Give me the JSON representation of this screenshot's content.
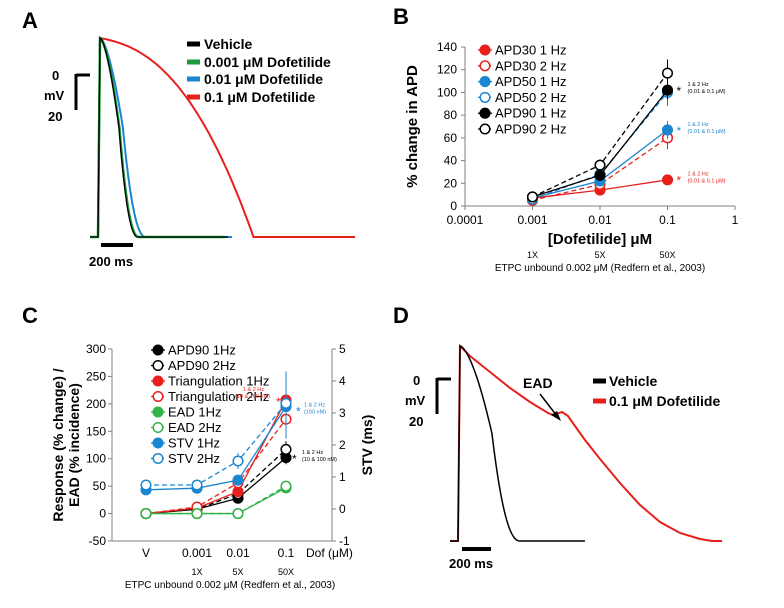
{
  "panels": {
    "A": {
      "letter": "A",
      "scale_zero": "0",
      "scale_unit": "mV",
      "scale_bottom": "20",
      "time_scale": "200 ms",
      "legend": [
        "Vehicle",
        "0.001 μM Dofetilide",
        "0.01 μM Dofetilide",
        "0.1 μM Dofetilide"
      ]
    },
    "B": {
      "letter": "B"
    },
    "C": {
      "letter": "C"
    },
    "D": {
      "letter": "D",
      "scale_zero": "0",
      "scale_unit": "mV",
      "scale_bottom": "20",
      "time_scale": "200 ms",
      "ead_label": "EAD",
      "legend": [
        "Vehicle",
        "0.1 μM Dofetilide"
      ]
    }
  },
  "colors": {
    "black": "#000000",
    "green": "#1f9a3a",
    "green_light": "#34b24a",
    "blue": "#1b86d0",
    "red": "#e8201c",
    "gray": "#808080"
  },
  "chart_data": [
    {
      "panel": "A",
      "type": "line",
      "title": "",
      "xlabel": "",
      "ylabel": "",
      "series": [
        {
          "name": "Vehicle",
          "color": "#000000",
          "apd_ms": 215
        },
        {
          "name": "0.001 μM Dofetilide",
          "color": "#1f9a3a",
          "apd_ms": 220
        },
        {
          "name": "0.01 μM Dofetilide",
          "color": "#1b86d0",
          "apd_ms": 260
        },
        {
          "name": "0.1 μM Dofetilide",
          "color": "#e8201c",
          "apd_ms": 720
        }
      ]
    },
    {
      "panel": "B",
      "type": "scatter",
      "title": "",
      "xlabel": "[Dofetilide] μM",
      "ylabel": "% change in APD",
      "xscale": "log",
      "xlim": [
        0.0001,
        1
      ],
      "ylim": [
        0,
        140
      ],
      "x_ticks": [
        "0.0001",
        "0.001",
        "0.01",
        "0.1",
        "1"
      ],
      "y_ticks": [
        "0",
        "20",
        "40",
        "60",
        "80",
        "100",
        "120",
        "140"
      ],
      "multiples": [
        "1X",
        "5X",
        "50X"
      ],
      "footnote": "ETPC unbound 0.002 μM (Redfern et al., 2003)",
      "x": [
        0.001,
        0.01,
        0.1
      ],
      "series": [
        {
          "name": "APD30 1 Hz",
          "color": "#e8201c",
          "filled": true,
          "dashed": false,
          "values": [
            7,
            14,
            23
          ],
          "err": [
            1,
            4,
            4
          ]
        },
        {
          "name": "APD30 2 Hz",
          "color": "#e8201c",
          "filled": false,
          "dashed": true,
          "values": [
            5,
            19,
            60
          ],
          "err": [
            1,
            4,
            10
          ]
        },
        {
          "name": "APD50 1 Hz",
          "color": "#1b86d0",
          "filled": true,
          "dashed": false,
          "values": [
            7,
            22,
            67
          ],
          "err": [
            1,
            4,
            8
          ]
        },
        {
          "name": "APD50 2 Hz",
          "color": "#1b86d0",
          "filled": false,
          "dashed": true,
          "values": [
            6,
            28,
            100
          ],
          "err": [
            1,
            5,
            12
          ]
        },
        {
          "name": "APD90 1 Hz",
          "color": "#000000",
          "filled": true,
          "dashed": false,
          "values": [
            8,
            27,
            102
          ],
          "err": [
            1,
            4,
            8
          ]
        },
        {
          "name": "APD90 2 Hz",
          "color": "#000000",
          "filled": false,
          "dashed": true,
          "values": [
            8,
            36,
            117
          ],
          "err": [
            2,
            5,
            12
          ]
        }
      ],
      "annotations": [
        {
          "text_top": "1 & 2 Hz",
          "text_bottom": "(0.01 & 0.1 μM)",
          "color": "#000000",
          "at_value": 103
        },
        {
          "text_top": "1 & 2 Hz",
          "text_bottom": "(0.01 & 0.1 μM)",
          "color": "#1b86d0",
          "at_value": 68
        },
        {
          "text_top": "1 & 2 Hz",
          "text_bottom": "(0.01 & 0.1 μM)",
          "color": "#e8201c",
          "at_value": 24
        }
      ]
    },
    {
      "panel": "C",
      "type": "scatter",
      "title": "",
      "xlabel": "Dof (μM)",
      "ylabel": "Response (% change) / EAD (% incidence)",
      "ylabel_lines": [
        "Response (% change) /",
        "EAD (% incidence)"
      ],
      "y2label": "STV (ms)",
      "categories": [
        "V",
        "0.001",
        "0.01",
        "0.1"
      ],
      "ylim": [
        -50,
        300
      ],
      "y2lim": [
        -1,
        5
      ],
      "y_ticks": [
        "-50",
        "0",
        "50",
        "100",
        "150",
        "200",
        "250",
        "300"
      ],
      "y2_ticks": [
        "-1",
        "0",
        "1",
        "2",
        "3",
        "4",
        "5"
      ],
      "multiples": [
        "1X",
        "5X",
        "50X"
      ],
      "footnote": "ETPC unbound 0.002 μM (Redfern et al., 2003)",
      "series": [
        {
          "name": "APD90 1Hz",
          "color": "#000000",
          "filled": true,
          "dashed": false,
          "axis": "left",
          "values": [
            0,
            8,
            28,
            102
          ],
          "err": [
            2,
            3,
            5,
            12
          ]
        },
        {
          "name": "APD90 2Hz",
          "color": "#000000",
          "filled": false,
          "dashed": true,
          "axis": "left",
          "values": [
            0,
            8,
            36,
            117
          ],
          "err": [
            2,
            3,
            6,
            15
          ]
        },
        {
          "name": "Triangulation 1Hz",
          "color": "#e8201c",
          "filled": true,
          "dashed": false,
          "axis": "left",
          "values": [
            0,
            10,
            40,
            207
          ],
          "err": [
            2,
            3,
            6,
            25
          ]
        },
        {
          "name": "Triangulation 2Hz",
          "color": "#e8201c",
          "filled": false,
          "dashed": true,
          "axis": "left",
          "values": [
            0,
            12,
            56,
            172
          ],
          "err": [
            2,
            3,
            8,
            25
          ]
        },
        {
          "name": "EAD 1Hz",
          "color": "#34b24a",
          "filled": true,
          "dashed": false,
          "axis": "left",
          "values": [
            0,
            0,
            0,
            47
          ],
          "err": [
            0,
            0,
            0,
            3
          ]
        },
        {
          "name": "EAD 2Hz",
          "color": "#34b24a",
          "filled": false,
          "dashed": true,
          "axis": "left",
          "values": [
            0,
            0,
            0,
            50
          ],
          "err": [
            0,
            0,
            0,
            3
          ]
        },
        {
          "name": "STV 1Hz",
          "color": "#1b86d0",
          "filled": true,
          "dashed": false,
          "axis": "right",
          "values": [
            0.6,
            0.65,
            0.9,
            3.2
          ],
          "err": [
            0.05,
            0.05,
            0.15,
            1.0
          ]
        },
        {
          "name": "STV 2Hz",
          "color": "#1b86d0",
          "filled": false,
          "dashed": true,
          "axis": "right",
          "values": [
            0.75,
            0.75,
            1.5,
            3.3
          ],
          "err": [
            0.05,
            0.08,
            0.25,
            1.0
          ]
        }
      ],
      "annotations": [
        {
          "text_top": "1 & 2 Hz",
          "text_bottom": "(10 & 100 nM)",
          "color": "#e8201c",
          "at_value": 207
        },
        {
          "text_top": "1 & 2 Hz",
          "text_bottom": "(100 nM)",
          "color": "#1b86d0",
          "at_value": 190
        },
        {
          "text_top": "1 & 2 Hz",
          "text_bottom": "(10 & 100 nM)",
          "color": "#000000",
          "at_value": 103
        }
      ]
    },
    {
      "panel": "D",
      "type": "line",
      "title": "",
      "xlabel": "",
      "ylabel": "",
      "series": [
        {
          "name": "Vehicle",
          "color": "#000000",
          "apd_ms": 215
        },
        {
          "name": "0.1 μM Dofetilide",
          "color": "#e8201c",
          "apd_ms": 1000
        }
      ]
    }
  ]
}
